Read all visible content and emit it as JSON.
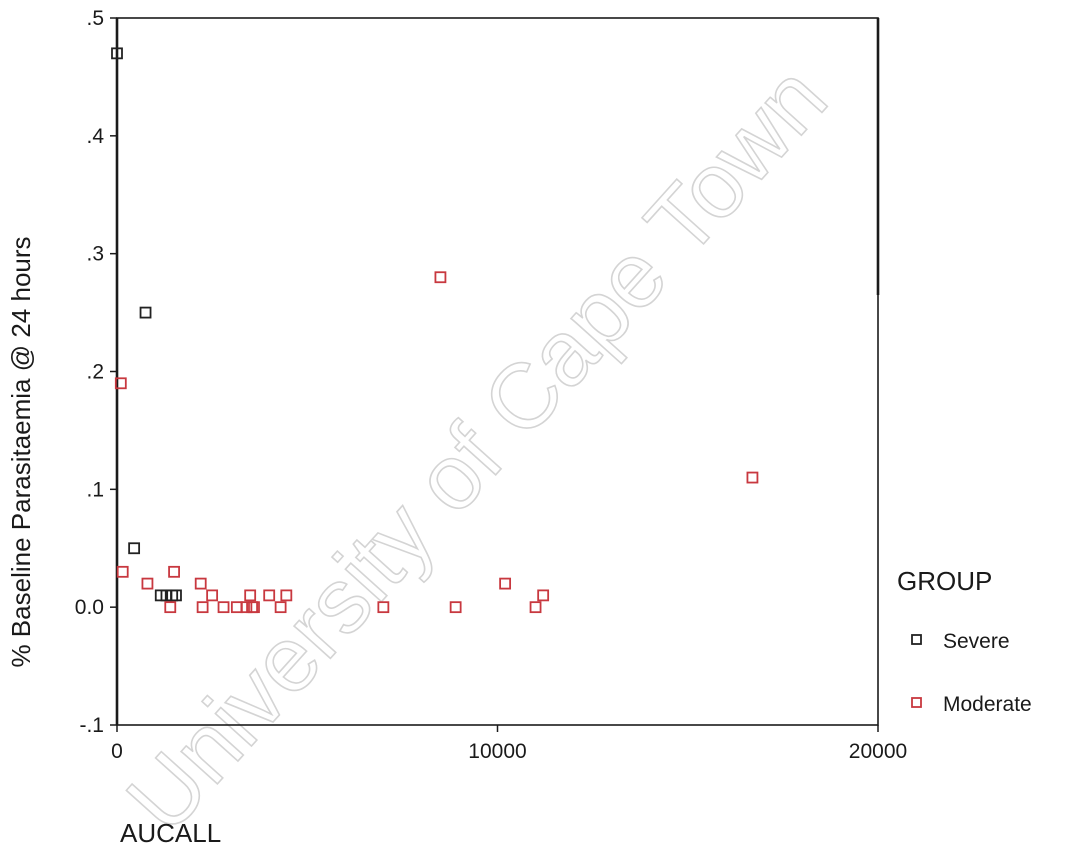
{
  "watermark": "University of Cape Town",
  "chart_data": {
    "type": "scatter",
    "xlabel": "AUCALL",
    "ylabel": "% Baseline Parasitaemia @ 24 hours",
    "xlim": [
      0,
      20000
    ],
    "ylim": [
      -0.1,
      0.5
    ],
    "x_ticks": [
      0,
      10000,
      20000
    ],
    "x_tick_labels": [
      "0",
      "10000",
      "20000"
    ],
    "y_ticks": [
      -0.1,
      0.0,
      0.1,
      0.2,
      0.3,
      0.4,
      0.5
    ],
    "y_tick_labels": [
      "-.1",
      "0.0",
      ".1",
      ".2",
      ".3",
      ".4",
      ".5"
    ],
    "grid": false,
    "legend": {
      "title": "GROUP",
      "placement": "right"
    },
    "series": [
      {
        "name": "Severe",
        "color": "#222222",
        "marker": "open-square",
        "points": [
          [
            0,
            0.47
          ],
          [
            750,
            0.25
          ],
          [
            450,
            0.05
          ],
          [
            1150,
            0.01
          ],
          [
            1300,
            0.01
          ],
          [
            1450,
            0.01
          ],
          [
            1550,
            0.01
          ]
        ]
      },
      {
        "name": "Moderate",
        "color": "#c8383f",
        "marker": "open-square",
        "points": [
          [
            100,
            0.19
          ],
          [
            150,
            0.03
          ],
          [
            800,
            0.02
          ],
          [
            1400,
            0.0
          ],
          [
            1500,
            0.03
          ],
          [
            2200,
            0.02
          ],
          [
            2250,
            0.0
          ],
          [
            2500,
            0.01
          ],
          [
            2800,
            0.0
          ],
          [
            3150,
            0.0
          ],
          [
            3400,
            0.0
          ],
          [
            3500,
            0.01
          ],
          [
            3550,
            0.0
          ],
          [
            3600,
            0.0
          ],
          [
            4000,
            0.01
          ],
          [
            4300,
            0.0
          ],
          [
            4450,
            0.01
          ],
          [
            7000,
            0.0
          ],
          [
            8500,
            0.28
          ],
          [
            8900,
            0.0
          ],
          [
            10200,
            0.02
          ],
          [
            11000,
            0.0
          ],
          [
            11200,
            0.01
          ],
          [
            16700,
            0.11
          ]
        ]
      }
    ]
  }
}
